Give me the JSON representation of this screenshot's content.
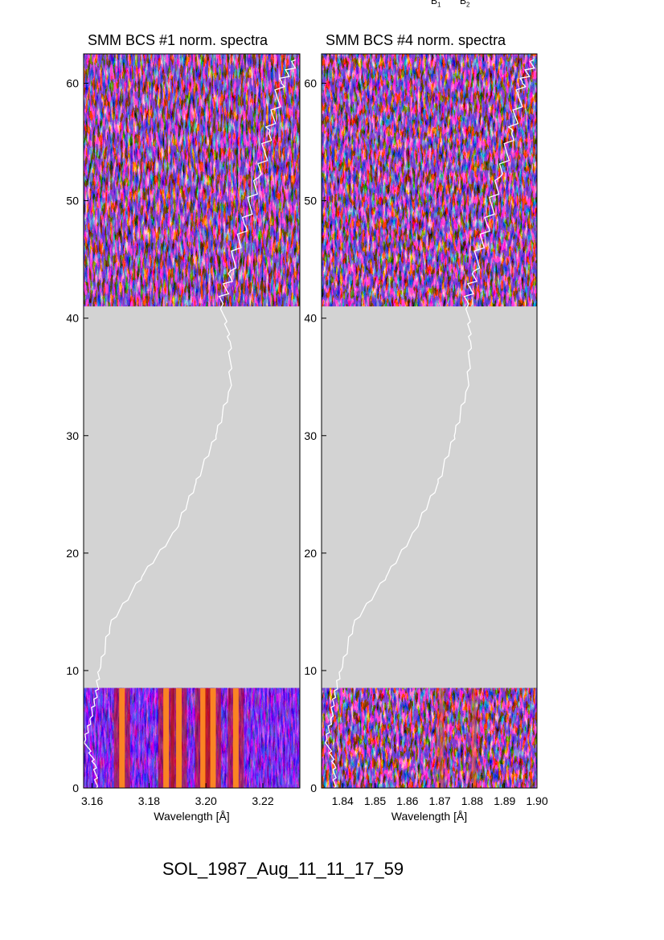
{
  "top_labels": [
    "B",
    "B"
  ],
  "top_label_subscripts": [
    "1",
    "2"
  ],
  "footer_label": "SOL_1987_Aug_11_11_17_59",
  "colors": {
    "gap_fill": "#d3d3d3",
    "overlay_line": "#ffffff",
    "spectrum_colormap": [
      "#000000",
      "#1a0a5c",
      "#3a10c0",
      "#ff4000",
      "#ff9a30",
      "#ffe080"
    ]
  },
  "chart_data": [
    {
      "type": "heatmap",
      "title": "SMM BCS #1 norm. spectra",
      "xlabel": "Wavelength [Å]",
      "ylabel": "",
      "xlim": [
        3.157,
        3.233
      ],
      "ylim": [
        0,
        62.5
      ],
      "xticks": [
        3.16,
        3.18,
        3.2,
        3.22
      ],
      "xtick_labels": [
        "3.16",
        "3.18",
        "3.20",
        "3.22"
      ],
      "yticks": [
        0,
        10,
        20,
        30,
        40,
        50,
        60
      ],
      "ytick_labels": [
        "0",
        "10",
        "20",
        "30",
        "40",
        "50",
        "60"
      ],
      "data_gap_y": [
        8.5,
        41
      ],
      "emission_lines_bottom": [
        3.1705,
        3.186,
        3.1905,
        3.199,
        3.2025,
        3.2105
      ],
      "overlay_curve": {
        "y": [
          0,
          2,
          4,
          6,
          8,
          10,
          14,
          18,
          22,
          26,
          30,
          34,
          38,
          41,
          44,
          48,
          52,
          56,
          60,
          62
        ],
        "x": [
          3.1615,
          3.161,
          3.1575,
          3.1595,
          3.1615,
          3.1625,
          3.1665,
          3.1775,
          3.1895,
          3.1965,
          3.2035,
          3.2085,
          3.2085,
          3.2055,
          3.2085,
          3.2135,
          3.2185,
          3.2225,
          3.2265,
          3.2315
        ]
      }
    },
    {
      "type": "heatmap",
      "title": "SMM BCS #4 norm. spectra",
      "xlabel": "Wavelength [Å]",
      "ylabel": "",
      "xlim": [
        1.8335,
        1.9
      ],
      "ylim": [
        0,
        62.5
      ],
      "xticks": [
        1.84,
        1.85,
        1.86,
        1.87,
        1.88,
        1.89,
        1.9
      ],
      "xtick_labels": [
        "1.84",
        "1.85",
        "1.86",
        "1.87",
        "1.88",
        "1.89",
        "1.90"
      ],
      "yticks": [
        0,
        10,
        20,
        30,
        40,
        50,
        60
      ],
      "ytick_labels": [
        "0",
        "10",
        "20",
        "30",
        "40",
        "50",
        "60"
      ],
      "data_gap_y": [
        8.5,
        41
      ],
      "emission_lines_bottom": [
        1.8705,
        1.8805
      ],
      "overlay_curve": {
        "y": [
          0,
          2,
          4,
          6,
          8,
          10,
          14,
          18,
          22,
          26,
          30,
          34,
          38,
          41,
          44,
          48,
          52,
          56,
          60,
          62
        ],
        "x": [
          1.8375,
          1.8375,
          1.835,
          1.8365,
          1.8375,
          1.8395,
          1.8435,
          1.8535,
          1.8625,
          1.8695,
          1.8745,
          1.8785,
          1.8795,
          1.8785,
          1.8805,
          1.8845,
          1.8885,
          1.8925,
          1.8955,
          1.899
        ]
      }
    }
  ]
}
